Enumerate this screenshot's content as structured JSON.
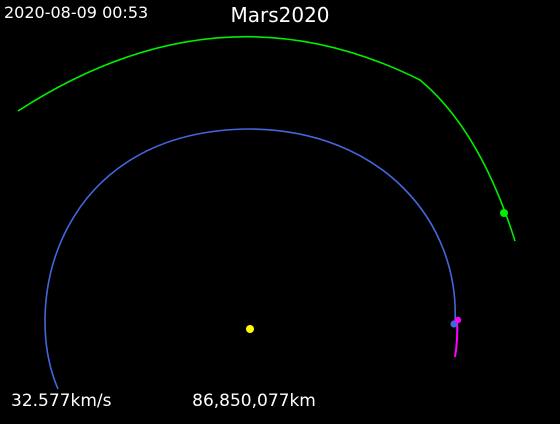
{
  "title": "Mars2020",
  "timestamp": "2020-08-09 00:53",
  "speed": "32.577km/s",
  "distance": "86,850,077km",
  "colors": {
    "background": "#000000",
    "sun": "#ffff00",
    "earth": "#4466dd",
    "mars": "#00ee00",
    "spacecraft": "#ff00ff",
    "text": "#ffffff"
  },
  "bodies": [
    "Sun",
    "Earth",
    "Mars",
    "Mars 2020"
  ]
}
